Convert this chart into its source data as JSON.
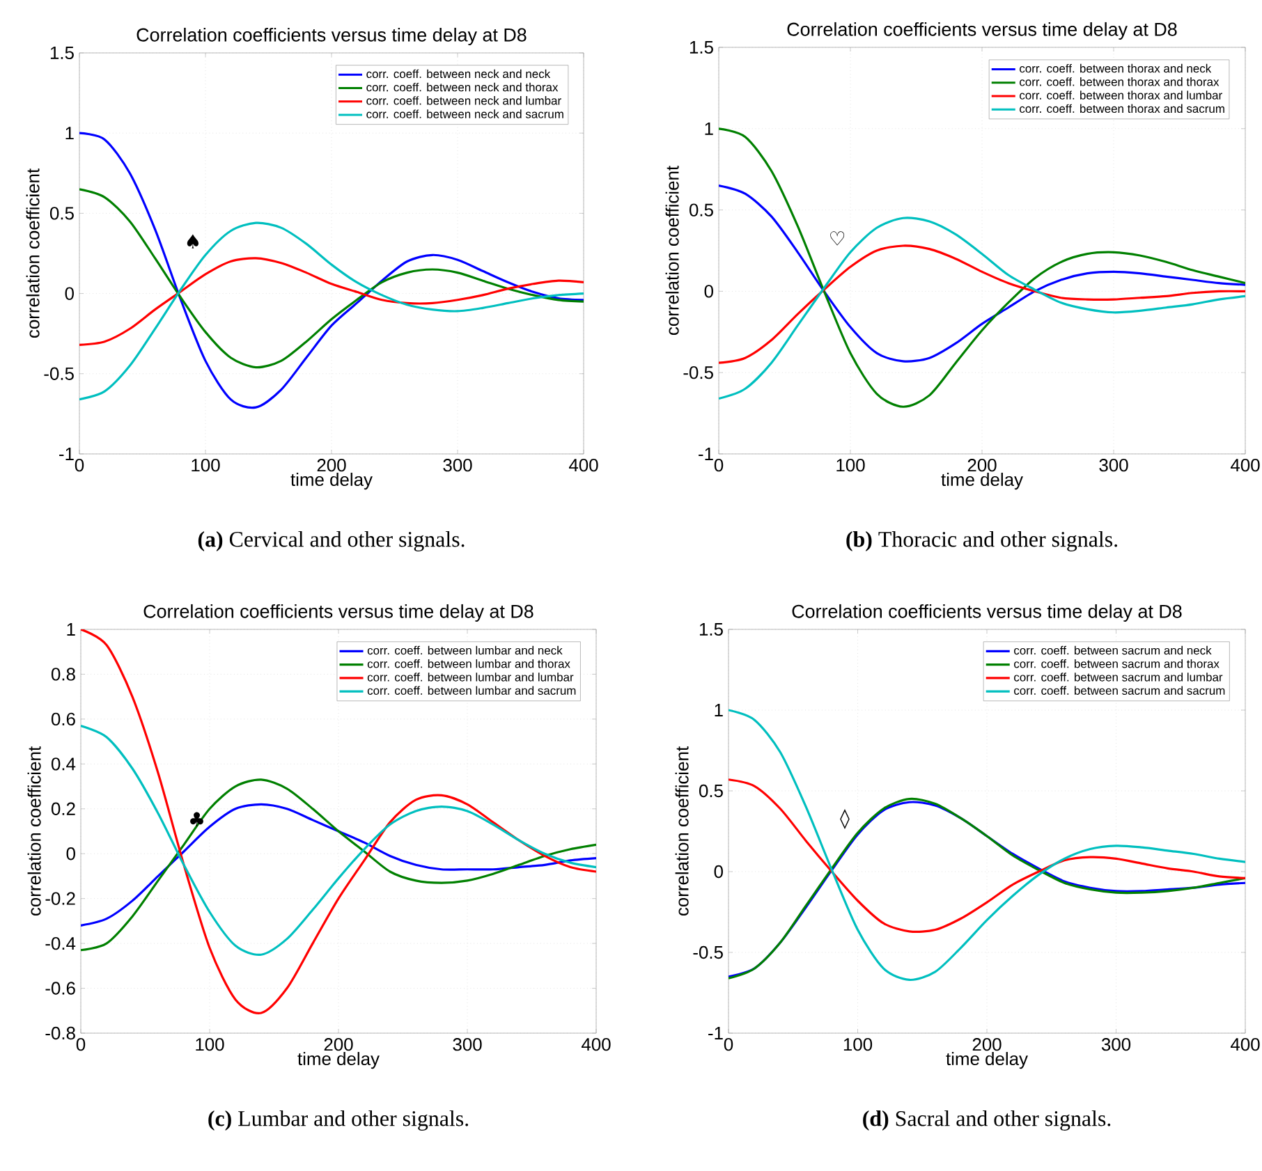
{
  "chart_data": [
    {
      "type": "line",
      "title": "Correlation coefficients versus time delay at D8",
      "xlabel": "time delay",
      "ylabel": "correlation coefficient",
      "xlim": [
        0,
        400
      ],
      "ylim": [
        -1,
        1.5
      ],
      "xticks": [
        0,
        100,
        200,
        300,
        400
      ],
      "yticks": [
        -1,
        -0.5,
        0,
        0.5,
        1,
        1.5
      ],
      "grid": true,
      "legend": "top right",
      "line_style": "solid",
      "x": [
        0,
        20,
        40,
        60,
        80,
        100,
        120,
        140,
        160,
        180,
        200,
        220,
        240,
        260,
        280,
        300,
        320,
        340,
        360,
        380,
        400
      ],
      "series": [
        {
          "name": "corr. coeff. between neck and neck",
          "color": "#0000ff",
          "values": [
            1.0,
            0.96,
            0.75,
            0.4,
            -0.03,
            -0.42,
            -0.66,
            -0.71,
            -0.6,
            -0.4,
            -0.2,
            -0.06,
            0.08,
            0.2,
            0.24,
            0.21,
            0.14,
            0.07,
            0.01,
            -0.03,
            -0.04
          ]
        },
        {
          "name": "corr. coeff. between neck and thorax",
          "color": "#008000",
          "values": [
            0.65,
            0.6,
            0.45,
            0.22,
            -0.02,
            -0.24,
            -0.4,
            -0.46,
            -0.42,
            -0.3,
            -0.16,
            -0.04,
            0.07,
            0.13,
            0.15,
            0.13,
            0.08,
            0.03,
            -0.01,
            -0.04,
            -0.05
          ]
        },
        {
          "name": "corr. coeff. between neck and lumbar",
          "color": "#ff0000",
          "values": [
            -0.32,
            -0.3,
            -0.22,
            -0.1,
            0.01,
            0.12,
            0.2,
            0.22,
            0.19,
            0.13,
            0.06,
            0.01,
            -0.04,
            -0.06,
            -0.06,
            -0.04,
            -0.01,
            0.03,
            0.06,
            0.08,
            0.07
          ]
        },
        {
          "name": "corr. coeff. between neck and sacrum",
          "color": "#00bfbf",
          "values": [
            -0.66,
            -0.61,
            -0.45,
            -0.22,
            0.02,
            0.24,
            0.39,
            0.44,
            0.41,
            0.31,
            0.18,
            0.07,
            -0.01,
            -0.07,
            -0.1,
            -0.11,
            -0.09,
            -0.06,
            -0.03,
            -0.01,
            0.0
          ]
        }
      ],
      "annotations": [
        "♠",
        "**(a)** Cervical and other signals."
      ]
    },
    {
      "type": "line",
      "title": "Correlation coefficients versus time delay at D8",
      "xlabel": "time delay",
      "ylabel": "correlation coefficient",
      "xlim": [
        0,
        400
      ],
      "ylim": [
        -1,
        1.5
      ],
      "xticks": [
        0,
        100,
        200,
        300,
        400
      ],
      "yticks": [
        -1,
        -0.5,
        0,
        0.5,
        1,
        1.5
      ],
      "grid": true,
      "legend": "top right",
      "line_style": "solid",
      "x": [
        0,
        20,
        40,
        60,
        80,
        100,
        120,
        140,
        160,
        180,
        200,
        220,
        240,
        260,
        280,
        300,
        320,
        340,
        360,
        380,
        400
      ],
      "series": [
        {
          "name": "corr. coeff. between thorax and neck",
          "color": "#0000ff",
          "values": [
            0.65,
            0.6,
            0.46,
            0.24,
            0.0,
            -0.22,
            -0.38,
            -0.43,
            -0.41,
            -0.32,
            -0.2,
            -0.1,
            0.0,
            0.07,
            0.11,
            0.12,
            0.11,
            0.09,
            0.07,
            0.05,
            0.04
          ]
        },
        {
          "name": "corr. coeff. between thorax and thorax",
          "color": "#008000",
          "values": [
            1.0,
            0.95,
            0.74,
            0.4,
            0.0,
            -0.38,
            -0.63,
            -0.71,
            -0.64,
            -0.44,
            -0.24,
            -0.07,
            0.08,
            0.18,
            0.23,
            0.24,
            0.22,
            0.18,
            0.13,
            0.09,
            0.05
          ]
        },
        {
          "name": "corr. coeff. between thorax and lumbar",
          "color": "#ff0000",
          "values": [
            -0.44,
            -0.41,
            -0.3,
            -0.14,
            0.01,
            0.15,
            0.25,
            0.28,
            0.26,
            0.2,
            0.12,
            0.05,
            0.0,
            -0.04,
            -0.05,
            -0.05,
            -0.04,
            -0.03,
            -0.01,
            0.0,
            0.0
          ]
        },
        {
          "name": "corr. coeff. between thorax and sacrum",
          "color": "#00bfbf",
          "values": [
            -0.66,
            -0.6,
            -0.44,
            -0.21,
            0.02,
            0.24,
            0.39,
            0.45,
            0.43,
            0.35,
            0.23,
            0.1,
            0.01,
            -0.07,
            -0.11,
            -0.13,
            -0.12,
            -0.1,
            -0.08,
            -0.05,
            -0.03
          ]
        }
      ],
      "annotations": [
        "♡",
        "**(b)** Thoracic and other signals."
      ]
    },
    {
      "type": "line",
      "title": "Correlation coefficients versus time delay at D8",
      "xlabel": "time delay",
      "ylabel": "correlation coefficient",
      "xlim": [
        0,
        400
      ],
      "ylim": [
        -0.8,
        1
      ],
      "xticks": [
        0,
        100,
        200,
        300,
        400
      ],
      "yticks": [
        -0.8,
        -0.6,
        -0.4,
        -0.2,
        0,
        0.2,
        0.4,
        0.6,
        0.8,
        1
      ],
      "grid": true,
      "legend": "top right",
      "line_style": "solid",
      "x": [
        0,
        20,
        40,
        60,
        80,
        100,
        120,
        140,
        160,
        180,
        200,
        220,
        240,
        260,
        280,
        300,
        320,
        340,
        360,
        380,
        400
      ],
      "series": [
        {
          "name": "corr. coeff. between lumbar and neck",
          "color": "#0000ff",
          "values": [
            -0.32,
            -0.29,
            -0.21,
            -0.1,
            0.01,
            0.12,
            0.2,
            0.22,
            0.2,
            0.15,
            0.1,
            0.05,
            -0.01,
            -0.05,
            -0.07,
            -0.07,
            -0.07,
            -0.06,
            -0.05,
            -0.03,
            -0.02
          ]
        },
        {
          "name": "corr. coeff. between lumbar and thorax",
          "color": "#008000",
          "values": [
            -0.43,
            -0.4,
            -0.28,
            -0.12,
            0.04,
            0.2,
            0.3,
            0.33,
            0.29,
            0.2,
            0.1,
            0.01,
            -0.08,
            -0.12,
            -0.13,
            -0.12,
            -0.09,
            -0.05,
            -0.01,
            0.02,
            0.04
          ]
        },
        {
          "name": "corr. coeff. between lumbar and lumbar",
          "color": "#ff0000",
          "values": [
            1.0,
            0.93,
            0.7,
            0.36,
            -0.05,
            -0.42,
            -0.65,
            -0.71,
            -0.6,
            -0.4,
            -0.2,
            -0.03,
            0.14,
            0.24,
            0.26,
            0.22,
            0.14,
            0.06,
            -0.01,
            -0.06,
            -0.08
          ]
        },
        {
          "name": "corr. coeff. between lumbar and sacrum",
          "color": "#00bfbf",
          "values": [
            0.57,
            0.52,
            0.38,
            0.18,
            -0.05,
            -0.26,
            -0.41,
            -0.45,
            -0.38,
            -0.25,
            -0.11,
            0.02,
            0.13,
            0.19,
            0.21,
            0.19,
            0.13,
            0.06,
            0.0,
            -0.04,
            -0.06
          ]
        }
      ],
      "annotations": [
        "♣",
        "**(c)** Lumbar and other signals."
      ]
    },
    {
      "type": "line",
      "title": "Correlation coefficients versus time delay at D8",
      "xlabel": "time delay",
      "ylabel": "correlation coefficient",
      "xlim": [
        0,
        400
      ],
      "ylim": [
        -1,
        1.5
      ],
      "xticks": [
        0,
        100,
        200,
        300,
        400
      ],
      "yticks": [
        -1,
        -0.5,
        0,
        0.5,
        1,
        1.5
      ],
      "grid": true,
      "legend": "top right",
      "line_style": "solid",
      "x": [
        0,
        20,
        40,
        60,
        80,
        100,
        120,
        140,
        160,
        180,
        200,
        220,
        240,
        260,
        280,
        300,
        320,
        340,
        360,
        380,
        400
      ],
      "series": [
        {
          "name": "corr. coeff. between sacrum and neck",
          "color": "#0000ff",
          "values": [
            -0.65,
            -0.6,
            -0.44,
            -0.22,
            0.01,
            0.23,
            0.38,
            0.43,
            0.41,
            0.33,
            0.22,
            0.11,
            0.02,
            -0.06,
            -0.1,
            -0.12,
            -0.12,
            -0.11,
            -0.1,
            -0.08,
            -0.07
          ]
        },
        {
          "name": "corr. coeff. between sacrum and thorax",
          "color": "#008000",
          "values": [
            -0.66,
            -0.6,
            -0.44,
            -0.21,
            0.02,
            0.24,
            0.39,
            0.45,
            0.42,
            0.33,
            0.22,
            0.1,
            0.01,
            -0.07,
            -0.11,
            -0.13,
            -0.13,
            -0.12,
            -0.1,
            -0.07,
            -0.04
          ]
        },
        {
          "name": "corr. coeff. between sacrum and lumbar",
          "color": "#ff0000",
          "values": [
            0.57,
            0.53,
            0.39,
            0.19,
            0.0,
            -0.18,
            -0.32,
            -0.37,
            -0.36,
            -0.29,
            -0.19,
            -0.08,
            0.0,
            0.07,
            0.09,
            0.08,
            0.05,
            0.02,
            0.0,
            -0.03,
            -0.04
          ]
        },
        {
          "name": "corr. coeff. between sacrum and sacrum",
          "color": "#00bfbf",
          "values": [
            1.0,
            0.94,
            0.74,
            0.4,
            0.01,
            -0.36,
            -0.6,
            -0.67,
            -0.62,
            -0.47,
            -0.3,
            -0.15,
            -0.02,
            0.08,
            0.14,
            0.16,
            0.15,
            0.13,
            0.11,
            0.08,
            0.06
          ]
        }
      ],
      "annotations": [
        "◊",
        "**(d)** Sacral and other signals."
      ]
    }
  ]
}
